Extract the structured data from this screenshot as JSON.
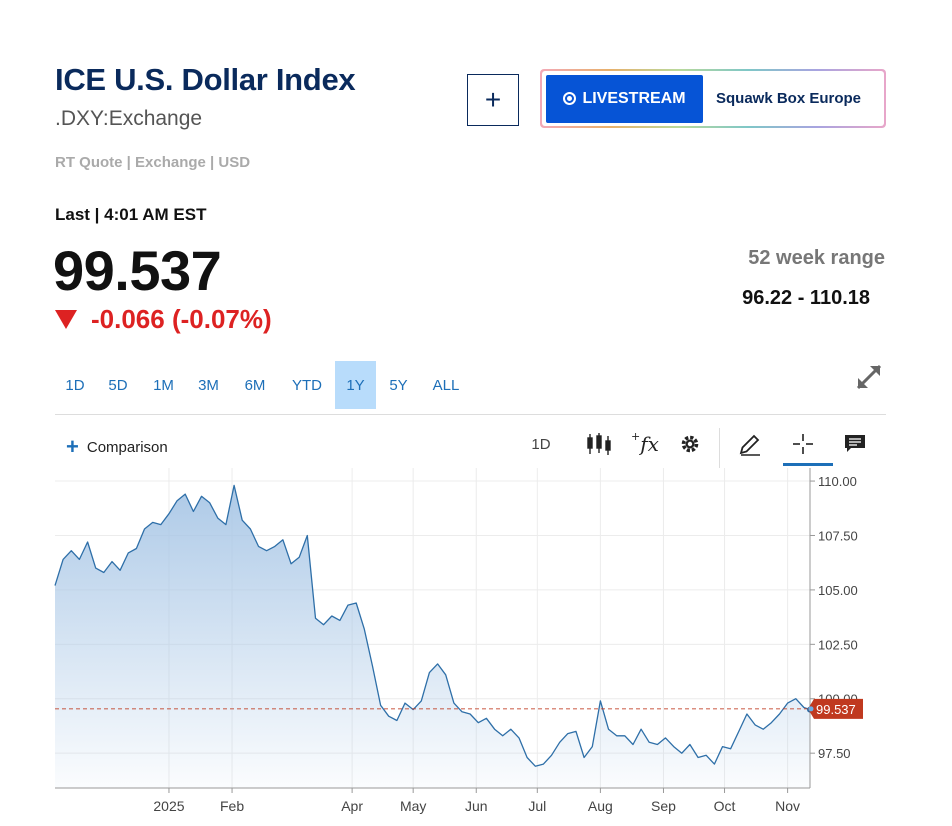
{
  "header": {
    "title": "ICE U.S. Dollar Index",
    "symbol": ".DXY:Exchange",
    "quote_meta": "RT Quote | Exchange | USD"
  },
  "add_button": "+",
  "livestream": {
    "button_label": "LIVESTREAM",
    "show_name": "Squawk Box Europe"
  },
  "quote": {
    "last_label": "Last | 4:01 AM EST",
    "price": "99.537",
    "change": "-0.066 (-0.07%)",
    "change_direction": "down",
    "change_color": "#dd2222"
  },
  "range": {
    "label": "52 week range",
    "value": "96.22 - 110.18"
  },
  "periods": [
    "1D",
    "5D",
    "1M",
    "3M",
    "6M",
    "YTD",
    "1Y",
    "5Y",
    "ALL"
  ],
  "active_period": "1Y",
  "toolbar": {
    "comparison_label": "Comparison",
    "interval_label": "1D",
    "tools": [
      "candlestick-icon",
      "function-icon",
      "settings-gear-icon",
      "pencil-draw-icon",
      "crosshair-icon",
      "comment-icon"
    ],
    "active_tool": "crosshair-icon"
  },
  "chart_data": {
    "type": "area",
    "title": "",
    "xlabel": "",
    "ylabel": "",
    "x_tick_labels": [
      "2025",
      "Feb",
      "Apr",
      "May",
      "Jun",
      "Jul",
      "Aug",
      "Sep",
      "Oct",
      "Nov"
    ],
    "y_tick_labels": [
      "110.00",
      "107.50",
      "105.00",
      "102.50",
      "100.00",
      "97.50"
    ],
    "ylim": [
      95.9,
      110.6
    ],
    "x_start": "2024-11-06",
    "x_end": "2025-11-12",
    "grid": true,
    "line_color": "#2e6fa8",
    "fill_color": "#a9c7e6",
    "current_value_line": 99.537,
    "current_value_label": "99.537",
    "current_value_color": "#c0391f",
    "series": [
      {
        "x": [
          "2024-11-06",
          "2024-11-10",
          "2024-11-14",
          "2024-11-18",
          "2024-11-22",
          "2024-11-26",
          "2024-11-30",
          "2024-12-04",
          "2024-12-08",
          "2024-12-12",
          "2024-12-16",
          "2024-12-20",
          "2024-12-24",
          "2024-12-28",
          "2025-01-01",
          "2025-01-05",
          "2025-01-09",
          "2025-01-13",
          "2025-01-17",
          "2025-01-21",
          "2025-01-25",
          "2025-01-29",
          "2025-02-02",
          "2025-02-06",
          "2025-02-10",
          "2025-02-14",
          "2025-02-18",
          "2025-02-22",
          "2025-02-26",
          "2025-03-02",
          "2025-03-06",
          "2025-03-10",
          "2025-03-14",
          "2025-03-18",
          "2025-03-22",
          "2025-03-26",
          "2025-03-30",
          "2025-04-03",
          "2025-04-07",
          "2025-04-11",
          "2025-04-15",
          "2025-04-19",
          "2025-04-23",
          "2025-04-27",
          "2025-05-01",
          "2025-05-05",
          "2025-05-09",
          "2025-05-13",
          "2025-05-17",
          "2025-05-21",
          "2025-05-25",
          "2025-05-29",
          "2025-06-02",
          "2025-06-06",
          "2025-06-10",
          "2025-06-14",
          "2025-06-18",
          "2025-06-22",
          "2025-06-26",
          "2025-06-30",
          "2025-07-04",
          "2025-07-08",
          "2025-07-12",
          "2025-07-16",
          "2025-07-20",
          "2025-07-24",
          "2025-07-28",
          "2025-08-01",
          "2025-08-05",
          "2025-08-09",
          "2025-08-13",
          "2025-08-17",
          "2025-08-21",
          "2025-08-25",
          "2025-08-29",
          "2025-09-02",
          "2025-09-06",
          "2025-09-10",
          "2025-09-14",
          "2025-09-18",
          "2025-09-22",
          "2025-09-26",
          "2025-09-30",
          "2025-10-04",
          "2025-10-08",
          "2025-10-12",
          "2025-10-16",
          "2025-10-20",
          "2025-10-24",
          "2025-10-28",
          "2025-11-01",
          "2025-11-05",
          "2025-11-09",
          "2025-11-12"
        ],
        "y": [
          105.2,
          106.4,
          106.8,
          106.4,
          107.2,
          106.0,
          105.8,
          106.3,
          105.9,
          106.7,
          106.9,
          107.8,
          108.1,
          108.0,
          108.5,
          109.1,
          109.4,
          108.6,
          109.3,
          109.0,
          108.3,
          108.0,
          109.8,
          108.2,
          107.8,
          107.0,
          106.8,
          107.0,
          107.3,
          106.2,
          106.5,
          107.5,
          103.7,
          103.4,
          103.8,
          103.6,
          104.3,
          104.4,
          103.2,
          101.5,
          99.7,
          99.2,
          99.0,
          99.8,
          99.5,
          99.9,
          101.2,
          101.6,
          101.1,
          99.8,
          99.4,
          99.3,
          98.9,
          99.1,
          98.6,
          98.3,
          98.6,
          98.2,
          97.3,
          96.9,
          97.0,
          97.4,
          98.0,
          98.4,
          98.5,
          97.3,
          97.8,
          99.9,
          98.6,
          98.3,
          98.3,
          97.9,
          98.6,
          98.0,
          97.9,
          98.2,
          97.8,
          97.5,
          97.9,
          97.3,
          97.4,
          97.0,
          97.8,
          97.7,
          98.5,
          99.3,
          98.8,
          98.6,
          98.9,
          99.3,
          99.8,
          100.0,
          99.6,
          99.5
        ]
      }
    ]
  }
}
